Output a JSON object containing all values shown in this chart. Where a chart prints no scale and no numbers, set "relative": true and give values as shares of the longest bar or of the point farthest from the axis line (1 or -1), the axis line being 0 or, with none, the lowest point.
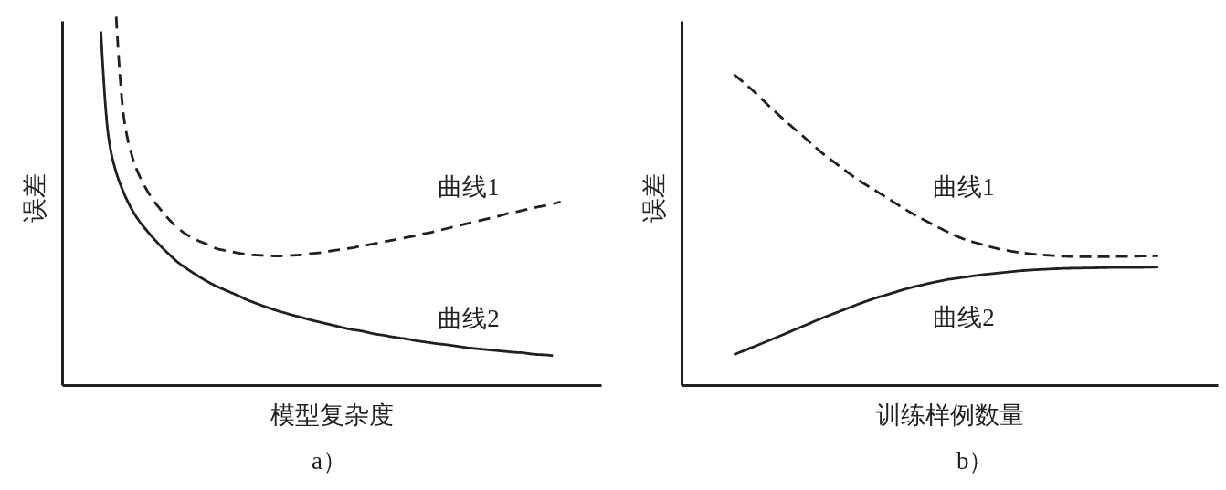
{
  "chart_data": [
    {
      "type": "line",
      "xlabel": "模型复杂度",
      "ylabel": "误差",
      "annotations": [
        "a）"
      ],
      "relative": true,
      "tick_labels": false,
      "categories": [
        null,
        null,
        null,
        null,
        null,
        null,
        null,
        null,
        null,
        null,
        null,
        null,
        null,
        null,
        null,
        null,
        null,
        null,
        null,
        null,
        null,
        null,
        null,
        null,
        null,
        null,
        null,
        null,
        null,
        null,
        null,
        null,
        null,
        null,
        null,
        null,
        null,
        null,
        null,
        null,
        null,
        null,
        null,
        null,
        null,
        null,
        null,
        null,
        null,
        null,
        null,
        null,
        null,
        null,
        null,
        null,
        null,
        null,
        null,
        null,
        null
      ],
      "series": [
        {
          "name": "曲线1",
          "color": "#231f20",
          "line_style": "dashed",
          "values": [
            null,
            null,
            1.0,
            0.727,
            0.627,
            0.57,
            0.53,
            0.498,
            0.472,
            0.448,
            0.428,
            0.412,
            0.4,
            0.39,
            0.382,
            0.372,
            0.367,
            0.363,
            0.359,
            0.356,
            0.354,
            0.353,
            0.352,
            0.351,
            0.352,
            0.353,
            0.354,
            0.357,
            0.359,
            0.361,
            0.365,
            0.368,
            0.371,
            0.374,
            0.379,
            0.382,
            0.386,
            0.39,
            0.394,
            0.398,
            0.402,
            0.406,
            0.411,
            0.415,
            0.42,
            0.425,
            0.43,
            0.435,
            0.44,
            0.445,
            0.45,
            0.455,
            0.46,
            0.466,
            0.47,
            0.475,
            0.479,
            0.484,
            0.488,
            0.493,
            0.498
          ]
        },
        {
          "name": "曲线2",
          "color": "#231f20",
          "line_style": "solid",
          "values": [
            0.96,
            0.673,
            0.578,
            0.522,
            0.479,
            0.446,
            0.42,
            0.396,
            0.374,
            0.354,
            0.335,
            0.32,
            0.306,
            0.293,
            0.281,
            0.27,
            0.261,
            0.252,
            0.243,
            0.233,
            0.225,
            0.217,
            0.21,
            0.203,
            0.197,
            0.191,
            0.186,
            0.18,
            0.175,
            0.17,
            0.165,
            0.16,
            0.155,
            0.151,
            0.148,
            0.143,
            0.139,
            0.136,
            0.132,
            0.129,
            0.126,
            0.122,
            0.119,
            0.116,
            0.113,
            0.111,
            0.108,
            0.105,
            0.102,
            0.1,
            0.098,
            0.096,
            0.094,
            0.092,
            0.09,
            0.089,
            0.086,
            0.084,
            0.083,
            0.081,
            null
          ]
        }
      ]
    },
    {
      "type": "line",
      "xlabel": "训练样例数量",
      "ylabel": "误差",
      "annotations": [
        "b）"
      ],
      "relative": true,
      "tick_labels": false,
      "categories": [
        null,
        null,
        null,
        null,
        null,
        null,
        null,
        null,
        null,
        null,
        null,
        null,
        null,
        null,
        null,
        null,
        null,
        null,
        null,
        null,
        null,
        null,
        null,
        null,
        null
      ],
      "series": [
        {
          "name": "曲线1",
          "color": "#231f20",
          "line_style": "dashed",
          "values": [
            1.0,
            0.952,
            0.898,
            0.846,
            0.797,
            0.747,
            0.704,
            0.662,
            0.627,
            0.591,
            0.556,
            0.525,
            0.496,
            0.471,
            0.454,
            0.439,
            0.429,
            0.422,
            0.418,
            0.415,
            0.414,
            0.414,
            0.415,
            0.416,
            0.417
          ]
        },
        {
          "name": "曲线2",
          "color": "#231f20",
          "line_style": "solid",
          "values": [
            0.099,
            0.122,
            0.145,
            0.169,
            0.193,
            0.217,
            0.239,
            0.261,
            0.281,
            0.298,
            0.315,
            0.328,
            0.34,
            0.348,
            0.356,
            0.362,
            0.368,
            0.372,
            0.375,
            0.377,
            0.378,
            0.379,
            0.38,
            0.38,
            0.381
          ]
        }
      ]
    }
  ]
}
